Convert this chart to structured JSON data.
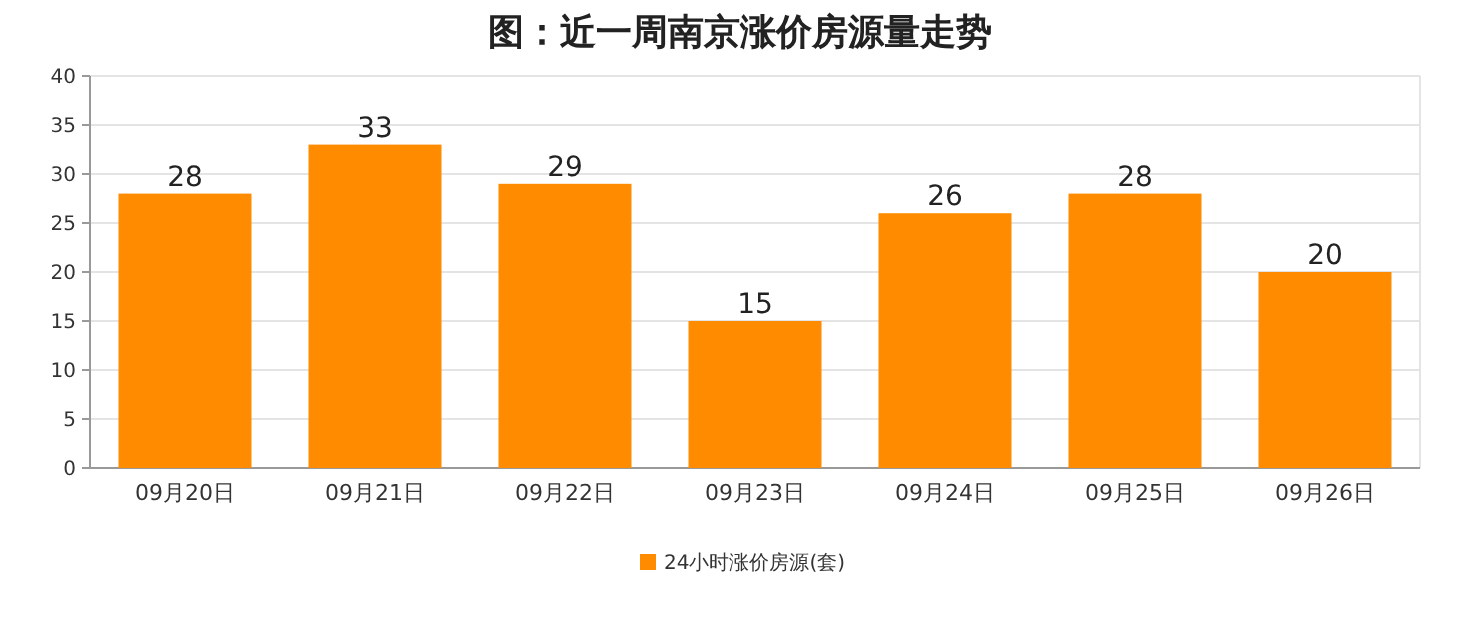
{
  "chart_data": {
    "type": "bar",
    "title": "图：近一周南京涨价房源量走势",
    "categories": [
      "09月20日",
      "09月21日",
      "09月22日",
      "09月23日",
      "09月24日",
      "09月25日",
      "09月26日"
    ],
    "series": [
      {
        "name": "24小时涨价房源(套)",
        "color": "#ff8c00",
        "values": [
          28,
          33,
          29,
          15,
          26,
          28,
          20
        ]
      }
    ],
    "ylim": [
      0,
      40
    ],
    "yticks": [
      0,
      5,
      10,
      15,
      20,
      25,
      30,
      35,
      40
    ],
    "grid": "y",
    "legend": "bottom",
    "data_labels": true
  }
}
